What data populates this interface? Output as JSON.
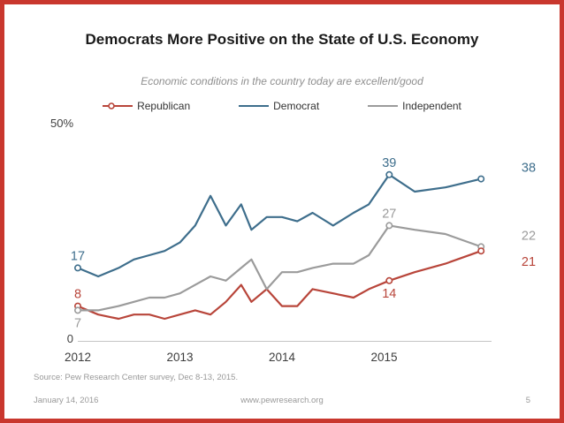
{
  "slide": {
    "title": "Democrats More Positive on the State of U.S. Economy",
    "subtitle": "Economic conditions in the country today are excellent/good",
    "source": "Source: Pew Research Center survey, Dec 8-13, 2015.",
    "footer": {
      "date": "January 14, 2016",
      "site": "www.pewresearch.org",
      "page": "5"
    }
  },
  "chart_data": {
    "type": "line",
    "title": "Economic conditions in the country today are excellent/good",
    "x_unit": "year",
    "x": [
      2012.0,
      2012.2,
      2012.4,
      2012.55,
      2012.7,
      2012.85,
      2013.0,
      2013.15,
      2013.3,
      2013.45,
      2013.6,
      2013.7,
      2013.85,
      2014.0,
      2014.15,
      2014.3,
      2014.5,
      2014.7,
      2014.85,
      2015.05,
      2015.3,
      2015.6,
      2015.95
    ],
    "series": [
      {
        "name": "Republican",
        "color": "#b8453a",
        "values": [
          8,
          6,
          5,
          6,
          6,
          5,
          6,
          7,
          6,
          9,
          13,
          9,
          12,
          8,
          8,
          12,
          11,
          10,
          12,
          14,
          16,
          18,
          21
        ]
      },
      {
        "name": "Democrat",
        "color": "#3e6e8c",
        "values": [
          17,
          15,
          17,
          19,
          20,
          21,
          23,
          27,
          34,
          27,
          32,
          26,
          29,
          29,
          28,
          30,
          27,
          30,
          32,
          39,
          35,
          36,
          38
        ]
      },
      {
        "name": "Independent",
        "color": "#9b9b9b",
        "values": [
          7,
          7,
          8,
          9,
          10,
          10,
          11,
          13,
          15,
          14,
          17,
          19,
          12,
          16,
          16,
          17,
          18,
          18,
          20,
          27,
          26,
          25,
          22
        ]
      }
    ],
    "ylim": [
      0,
      50
    ],
    "y_axis": {
      "top_label": "50%",
      "bottom_label": "0"
    },
    "x_ticks": [
      "2012",
      "2013",
      "2014",
      "2015"
    ],
    "legend_position": "top",
    "grid": false,
    "annotations": [
      {
        "series": "Democrat",
        "x": 2012.0,
        "y": 17,
        "label": "17",
        "placement": "above"
      },
      {
        "series": "Republican",
        "x": 2012.0,
        "y": 8,
        "label": "8",
        "placement": "above"
      },
      {
        "series": "Independent",
        "x": 2012.0,
        "y": 7,
        "label": "7",
        "placement": "below"
      },
      {
        "series": "Democrat",
        "x": 2015.05,
        "y": 39,
        "label": "39",
        "placement": "above"
      },
      {
        "series": "Independent",
        "x": 2015.05,
        "y": 27,
        "label": "27",
        "placement": "above"
      },
      {
        "series": "Republican",
        "x": 2015.05,
        "y": 14,
        "label": "14",
        "placement": "below"
      },
      {
        "series": "Democrat",
        "x": 2015.95,
        "y": 38,
        "label": "38",
        "placement": "right-above"
      },
      {
        "series": "Independent",
        "x": 2015.95,
        "y": 22,
        "label": "22",
        "placement": "right-above"
      },
      {
        "series": "Republican",
        "x": 2015.95,
        "y": 21,
        "label": "21",
        "placement": "right-below"
      }
    ]
  }
}
